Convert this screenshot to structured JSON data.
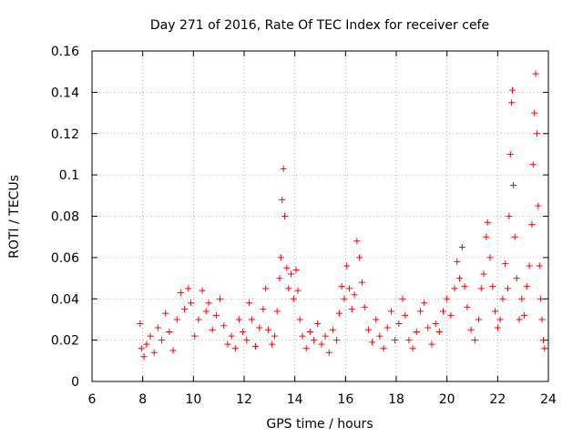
{
  "chart_data": {
    "type": "scatter",
    "title": "Day 271 of 2016, Rate Of TEC Index for receiver cefe",
    "xlabel": "GPS time / hours",
    "ylabel": "ROTI / TECUs",
    "xlim": [
      6,
      24
    ],
    "ylim": [
      0,
      0.16
    ],
    "x_ticks": [
      "6",
      "8",
      "10",
      "12",
      "14",
      "16",
      "18",
      "20",
      "22",
      "24"
    ],
    "y_ticks": [
      "0",
      "0.02",
      "0.04",
      "0.06",
      "0.08",
      "0.1",
      "0.12",
      "0.14",
      "0.16"
    ],
    "grid": true,
    "marker": "+",
    "color": "#ff0000",
    "series": [
      {
        "name": "ROTI",
        "points": [
          [
            7.9,
            0.028
          ],
          [
            7.95,
            0.016
          ],
          [
            8.05,
            0.012
          ],
          [
            8.15,
            0.018
          ],
          [
            8.3,
            0.022
          ],
          [
            8.45,
            0.014
          ],
          [
            8.6,
            0.026
          ],
          [
            8.75,
            0.02
          ],
          [
            8.9,
            0.033
          ],
          [
            9.05,
            0.024
          ],
          [
            9.2,
            0.015
          ],
          [
            9.35,
            0.03
          ],
          [
            9.5,
            0.043
          ],
          [
            9.65,
            0.035
          ],
          [
            9.8,
            0.045
          ],
          [
            9.9,
            0.038
          ],
          [
            10.05,
            0.022
          ],
          [
            10.2,
            0.03
          ],
          [
            10.35,
            0.044
          ],
          [
            10.5,
            0.034
          ],
          [
            10.6,
            0.038
          ],
          [
            10.75,
            0.025
          ],
          [
            10.9,
            0.032
          ],
          [
            11.05,
            0.04
          ],
          [
            11.2,
            0.027
          ],
          [
            11.35,
            0.018
          ],
          [
            11.5,
            0.022
          ],
          [
            11.65,
            0.016
          ],
          [
            11.8,
            0.03
          ],
          [
            11.95,
            0.024
          ],
          [
            12.1,
            0.02
          ],
          [
            12.2,
            0.038
          ],
          [
            12.3,
            0.03
          ],
          [
            12.45,
            0.017
          ],
          [
            12.6,
            0.026
          ],
          [
            12.75,
            0.035
          ],
          [
            12.85,
            0.045
          ],
          [
            12.95,
            0.025
          ],
          [
            13.1,
            0.018
          ],
          [
            13.2,
            0.022
          ],
          [
            13.3,
            0.034
          ],
          [
            13.4,
            0.05
          ],
          [
            13.45,
            0.06
          ],
          [
            13.5,
            0.088
          ],
          [
            13.55,
            0.103
          ],
          [
            13.6,
            0.08
          ],
          [
            13.68,
            0.055
          ],
          [
            13.75,
            0.045
          ],
          [
            13.85,
            0.052
          ],
          [
            13.95,
            0.04
          ],
          [
            14.05,
            0.054
          ],
          [
            14.12,
            0.044
          ],
          [
            14.2,
            0.03
          ],
          [
            14.3,
            0.022
          ],
          [
            14.45,
            0.016
          ],
          [
            14.6,
            0.024
          ],
          [
            14.75,
            0.02
          ],
          [
            14.9,
            0.028
          ],
          [
            15.05,
            0.018
          ],
          [
            15.2,
            0.022
          ],
          [
            15.35,
            0.014
          ],
          [
            15.5,
            0.025
          ],
          [
            15.65,
            0.02
          ],
          [
            15.75,
            0.033
          ],
          [
            15.85,
            0.046
          ],
          [
            15.95,
            0.04
          ],
          [
            16.05,
            0.056
          ],
          [
            16.15,
            0.045
          ],
          [
            16.25,
            0.035
          ],
          [
            16.35,
            0.042
          ],
          [
            16.45,
            0.068
          ],
          [
            16.55,
            0.06
          ],
          [
            16.65,
            0.048
          ],
          [
            16.75,
            0.036
          ],
          [
            16.9,
            0.025
          ],
          [
            17.05,
            0.019
          ],
          [
            17.2,
            0.03
          ],
          [
            17.35,
            0.022
          ],
          [
            17.5,
            0.016
          ],
          [
            17.65,
            0.026
          ],
          [
            17.8,
            0.034
          ],
          [
            17.95,
            0.02
          ],
          [
            18.1,
            0.028
          ],
          [
            18.25,
            0.04
          ],
          [
            18.35,
            0.032
          ],
          [
            18.5,
            0.02
          ],
          [
            18.65,
            0.016
          ],
          [
            18.8,
            0.024
          ],
          [
            18.95,
            0.034
          ],
          [
            19.1,
            0.038
          ],
          [
            19.25,
            0.026
          ],
          [
            19.4,
            0.018
          ],
          [
            19.55,
            0.028
          ],
          [
            19.7,
            0.024
          ],
          [
            19.85,
            0.034
          ],
          [
            20.0,
            0.04
          ],
          [
            20.15,
            0.032
          ],
          [
            20.3,
            0.045
          ],
          [
            20.4,
            0.058
          ],
          [
            20.5,
            0.05
          ],
          [
            20.6,
            0.065
          ],
          [
            20.7,
            0.046
          ],
          [
            20.8,
            0.036
          ],
          [
            20.95,
            0.025
          ],
          [
            21.1,
            0.02
          ],
          [
            21.25,
            0.03
          ],
          [
            21.35,
            0.045
          ],
          [
            21.45,
            0.052
          ],
          [
            21.55,
            0.07
          ],
          [
            21.6,
            0.077
          ],
          [
            21.7,
            0.06
          ],
          [
            21.8,
            0.046
          ],
          [
            21.9,
            0.034
          ],
          [
            22.0,
            0.026
          ],
          [
            22.1,
            0.03
          ],
          [
            22.2,
            0.04
          ],
          [
            22.3,
            0.057
          ],
          [
            22.4,
            0.045
          ],
          [
            22.45,
            0.08
          ],
          [
            22.5,
            0.11
          ],
          [
            22.55,
            0.135
          ],
          [
            22.58,
            0.141
          ],
          [
            22.62,
            0.095
          ],
          [
            22.68,
            0.07
          ],
          [
            22.75,
            0.05
          ],
          [
            22.85,
            0.03
          ],
          [
            22.95,
            0.04
          ],
          [
            23.05,
            0.032
          ],
          [
            23.15,
            0.046
          ],
          [
            23.25,
            0.056
          ],
          [
            23.35,
            0.076
          ],
          [
            23.4,
            0.105
          ],
          [
            23.45,
            0.13
          ],
          [
            23.5,
            0.149
          ],
          [
            23.55,
            0.12
          ],
          [
            23.6,
            0.085
          ],
          [
            23.65,
            0.056
          ],
          [
            23.7,
            0.04
          ],
          [
            23.75,
            0.03
          ],
          [
            23.8,
            0.02
          ],
          [
            23.85,
            0.016
          ]
        ]
      }
    ]
  }
}
